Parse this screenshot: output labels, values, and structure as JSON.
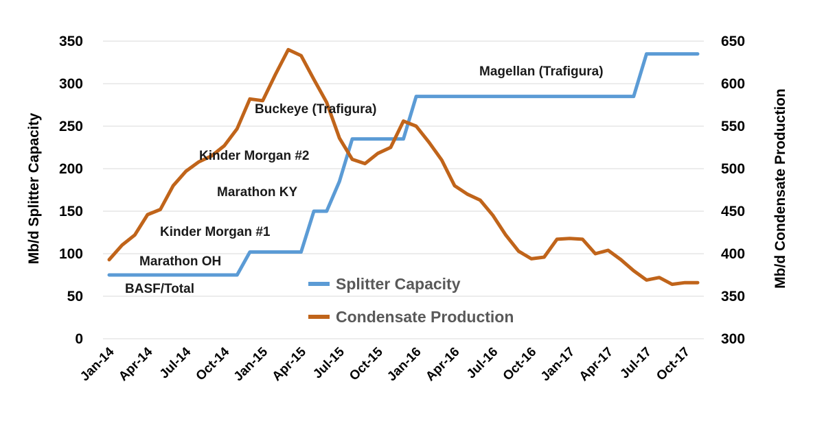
{
  "chart_data": {
    "type": "line",
    "x": [
      "Jan-14",
      "Feb-14",
      "Mar-14",
      "Apr-14",
      "May-14",
      "Jun-14",
      "Jul-14",
      "Aug-14",
      "Sep-14",
      "Oct-14",
      "Nov-14",
      "Dec-14",
      "Jan-15",
      "Feb-15",
      "Mar-15",
      "Apr-15",
      "May-15",
      "Jun-15",
      "Jul-15",
      "Aug-15",
      "Sep-15",
      "Oct-15",
      "Nov-15",
      "Dec-15",
      "Jan-16",
      "Feb-16",
      "Mar-16",
      "Apr-16",
      "May-16",
      "Jun-16",
      "Jul-16",
      "Aug-16",
      "Sep-16",
      "Oct-16",
      "Nov-16",
      "Dec-16",
      "Jan-17",
      "Feb-17",
      "Mar-17",
      "Apr-17",
      "May-17",
      "Jun-17",
      "Jul-17",
      "Aug-17",
      "Sep-17",
      "Oct-17",
      "Nov-17"
    ],
    "x_tick_labels": [
      "Jan-14",
      "Apr-14",
      "Jul-14",
      "Oct-14",
      "Jan-15",
      "Apr-15",
      "Jul-15",
      "Oct-15",
      "Jan-16",
      "Apr-16",
      "Jul-16",
      "Oct-16",
      "Jan-17",
      "Apr-17",
      "Jul-17",
      "Oct-17"
    ],
    "series": [
      {
        "name": "Splitter Capacity",
        "axis": "left",
        "color": "#5b9bd5",
        "values": [
          75,
          75,
          75,
          75,
          75,
          75,
          75,
          75,
          75,
          75,
          75,
          102,
          102,
          102,
          102,
          102,
          150,
          150,
          185,
          235,
          235,
          235,
          235,
          235,
          285,
          285,
          285,
          285,
          285,
          285,
          285,
          285,
          285,
          285,
          285,
          285,
          285,
          285,
          285,
          285,
          285,
          285,
          335,
          335,
          335,
          335,
          335
        ]
      },
      {
        "name": "Condensate Production",
        "axis": "right",
        "color": "#c0641a",
        "values": [
          393,
          410,
          422,
          446,
          452,
          480,
          497,
          508,
          515,
          527,
          547,
          582,
          580,
          611,
          640,
          633,
          605,
          578,
          536,
          511,
          506,
          518,
          525,
          556,
          550,
          531,
          510,
          480,
          470,
          463,
          445,
          422,
          403,
          394,
          396,
          417,
          418,
          417,
          400,
          404,
          393,
          380,
          369,
          372,
          364,
          366,
          366
        ]
      }
    ],
    "left_axis": {
      "title": "Mb/d Splitter Capacity",
      "min": 0,
      "max": 350,
      "ticks": [
        "0",
        "50",
        "100",
        "150",
        "200",
        "250",
        "300",
        "350"
      ]
    },
    "right_axis": {
      "title": "Mb/d Condensate Production",
      "min": 300,
      "max": 650,
      "ticks": [
        "300",
        "350",
        "400",
        "450",
        "500",
        "550",
        "600",
        "650"
      ]
    },
    "annotations": [
      "BASF/Total",
      "Marathon OH",
      "Kinder Morgan #1",
      "Marathon KY",
      "Kinder Morgan #2",
      "Buckeye (Trafigura)",
      "Magellan (Trafigura)"
    ],
    "grid": "horizontal",
    "legend_position": "center-bottom"
  }
}
